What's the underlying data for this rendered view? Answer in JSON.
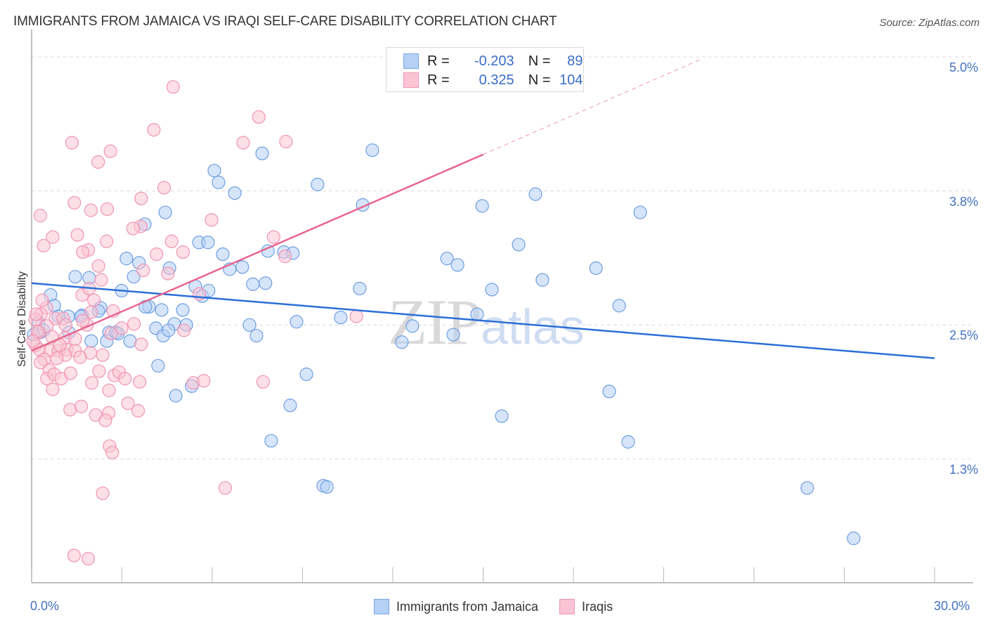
{
  "header": {
    "title": "IMMIGRANTS FROM JAMAICA VS IRAQI SELF-CARE DISABILITY CORRELATION CHART",
    "source": "Source: ZipAtlas.com"
  },
  "legend_box": {
    "rows": [
      {
        "r_label": "R =",
        "r_value": "-0.203",
        "n_label": "N =",
        "n_value": "89",
        "color": "#b4d0f5"
      },
      {
        "r_label": "R =",
        "r_value": "0.325",
        "n_label": "N =",
        "n_value": "104",
        "color": "#fac4d4"
      }
    ]
  },
  "bottom_legend": [
    {
      "label": "Immigrants from Jamaica",
      "color": "#b4d0f5"
    },
    {
      "label": "Iraqis",
      "color": "#fac4d4"
    }
  ],
  "watermark": {
    "part1": "ZIP",
    "part2": "atlas"
  },
  "chart_data": {
    "type": "scatter",
    "title": "IMMIGRANTS FROM JAMAICA VS IRAQI SELF-CARE DISABILITY CORRELATION CHART",
    "xlabel": "",
    "ylabel": "Self-Care Disability",
    "xlim": [
      0,
      30
    ],
    "ylim": [
      0.15,
      5.3
    ],
    "x_tick_labels": [
      {
        "value": 0,
        "label": "0.0%"
      },
      {
        "value": 30,
        "label": "30.0%"
      }
    ],
    "x_minor_ticks": [
      0,
      3,
      6,
      9,
      12,
      15,
      18,
      21,
      24,
      27,
      30
    ],
    "y_ticks": [
      {
        "value": 5.0,
        "label": "5.0%"
      },
      {
        "value": 3.75,
        "label": "3.8%"
      },
      {
        "value": 2.5,
        "label": "2.5%"
      },
      {
        "value": 1.25,
        "label": "1.3%"
      }
    ],
    "grid": "horizontal-dashed",
    "legend": "bottom-center",
    "series": [
      {
        "name": "Immigrants from Jamaica",
        "color": "#6f9ee0",
        "fill": "#b4d0f5",
        "R": -0.203,
        "N": 89,
        "trend": {
          "x": [
            0,
            30
          ],
          "y": [
            2.89,
            2.19
          ],
          "style": "solid"
        },
        "points": [
          [
            0.63,
            2.78
          ],
          [
            0.75,
            2.68
          ],
          [
            0.28,
            2.43
          ],
          [
            0.23,
            2.52
          ],
          [
            1.45,
            2.95
          ],
          [
            1.91,
            2.94
          ],
          [
            1.68,
            2.59
          ],
          [
            1.24,
            2.43
          ],
          [
            2.57,
            2.43
          ],
          [
            1.98,
            2.35
          ],
          [
            2.5,
            2.35
          ],
          [
            2.8,
            2.43
          ],
          [
            2.29,
            2.66
          ],
          [
            2.99,
            2.82
          ],
          [
            3.15,
            3.12
          ],
          [
            3.57,
            3.08
          ],
          [
            3.39,
            2.95
          ],
          [
            3.9,
            2.67
          ],
          [
            4.13,
            2.47
          ],
          [
            4.32,
            2.64
          ],
          [
            4.44,
            3.55
          ],
          [
            4.58,
            3.03
          ],
          [
            3.76,
            3.44
          ],
          [
            4.2,
            2.12
          ],
          [
            4.79,
            1.84
          ],
          [
            4.74,
            2.51
          ],
          [
            5.02,
            2.64
          ],
          [
            5.14,
            2.5
          ],
          [
            5.32,
            1.93
          ],
          [
            5.44,
            2.86
          ],
          [
            5.56,
            3.27
          ],
          [
            5.67,
            2.77
          ],
          [
            5.88,
            2.82
          ],
          [
            5.86,
            3.27
          ],
          [
            6.07,
            3.94
          ],
          [
            6.21,
            3.83
          ],
          [
            6.35,
            3.16
          ],
          [
            6.58,
            3.02
          ],
          [
            6.75,
            3.73
          ],
          [
            7.0,
            3.04
          ],
          [
            7.24,
            2.5
          ],
          [
            7.47,
            2.4
          ],
          [
            7.35,
            2.88
          ],
          [
            7.77,
            2.89
          ],
          [
            7.66,
            4.1
          ],
          [
            7.85,
            3.19
          ],
          [
            8.38,
            3.18
          ],
          [
            8.68,
            3.17
          ],
          [
            8.8,
            2.53
          ],
          [
            9.13,
            2.04
          ],
          [
            9.5,
            3.81
          ],
          [
            9.69,
            1.0
          ],
          [
            9.81,
            0.99
          ],
          [
            10.27,
            2.57
          ],
          [
            10.9,
            2.84
          ],
          [
            11.0,
            3.62
          ],
          [
            11.32,
            4.13
          ],
          [
            12.3,
            2.34
          ],
          [
            12.65,
            2.49
          ],
          [
            13.8,
            3.12
          ],
          [
            14.01,
            2.41
          ],
          [
            14.15,
            3.06
          ],
          [
            14.8,
            2.6
          ],
          [
            14.97,
            3.61
          ],
          [
            15.29,
            2.83
          ],
          [
            15.62,
            1.65
          ],
          [
            16.18,
            3.25
          ],
          [
            16.74,
            3.72
          ],
          [
            16.97,
            2.92
          ],
          [
            18.75,
            3.03
          ],
          [
            19.19,
            1.88
          ],
          [
            19.52,
            2.68
          ],
          [
            19.82,
            1.41
          ],
          [
            20.22,
            3.55
          ],
          [
            25.77,
            0.98
          ],
          [
            27.31,
            0.51
          ],
          [
            7.96,
            1.42
          ],
          [
            8.59,
            1.75
          ],
          [
            1.22,
            2.58
          ],
          [
            2.87,
            2.42
          ],
          [
            3.27,
            2.35
          ],
          [
            3.78,
            2.67
          ],
          [
            4.37,
            2.4
          ],
          [
            1.64,
            2.58
          ],
          [
            4.55,
            2.45
          ],
          [
            0.89,
            2.58
          ],
          [
            0.4,
            2.45
          ],
          [
            0.07,
            2.41
          ],
          [
            2.22,
            2.63
          ]
        ]
      },
      {
        "name": "Iraqis",
        "color": "#f095b3",
        "fill": "#fac4d4",
        "R": 0.325,
        "N": 104,
        "trend": {
          "x": [
            0,
            15.0
          ],
          "y": [
            2.26,
            4.09
          ],
          "style": "solid",
          "extended": {
            "x": [
              15.0,
              22.25
            ],
            "y": [
              4.09,
              4.98
            ],
            "style": "dashed"
          }
        },
        "points": [
          [
            4.7,
            4.72
          ],
          [
            4.06,
            4.32
          ],
          [
            7.55,
            4.44
          ],
          [
            1.34,
            4.2
          ],
          [
            7.03,
            4.2
          ],
          [
            8.45,
            4.21
          ],
          [
            2.62,
            4.12
          ],
          [
            2.21,
            4.02
          ],
          [
            4.4,
            3.78
          ],
          [
            1.42,
            3.64
          ],
          [
            3.64,
            3.68
          ],
          [
            0.29,
            3.52
          ],
          [
            1.97,
            3.57
          ],
          [
            2.51,
            3.58
          ],
          [
            3.62,
            3.42
          ],
          [
            5.98,
            3.48
          ],
          [
            0.7,
            3.32
          ],
          [
            1.52,
            3.34
          ],
          [
            0.4,
            3.24
          ],
          [
            1.88,
            3.2
          ],
          [
            2.49,
            3.28
          ],
          [
            4.15,
            3.16
          ],
          [
            3.37,
            3.4
          ],
          [
            4.65,
            3.28
          ],
          [
            5.03,
            3.18
          ],
          [
            1.7,
            3.18
          ],
          [
            2.22,
            3.05
          ],
          [
            8.04,
            3.32
          ],
          [
            8.42,
            3.14
          ],
          [
            3.71,
            3.01
          ],
          [
            5.57,
            2.79
          ],
          [
            2.31,
            2.92
          ],
          [
            1.68,
            2.78
          ],
          [
            2.07,
            2.73
          ],
          [
            0.49,
            2.66
          ],
          [
            0.79,
            2.56
          ],
          [
            0.31,
            2.6
          ],
          [
            1.05,
            2.56
          ],
          [
            1.98,
            2.62
          ],
          [
            2.71,
            2.63
          ],
          [
            1.13,
            2.5
          ],
          [
            0.24,
            2.43
          ],
          [
            0.51,
            2.49
          ],
          [
            0.68,
            2.39
          ],
          [
            1.84,
            2.5
          ],
          [
            5.06,
            2.45
          ],
          [
            10.79,
            2.58
          ],
          [
            0.13,
            2.31
          ],
          [
            0.26,
            2.27
          ],
          [
            0.61,
            2.26
          ],
          [
            0.89,
            2.26
          ],
          [
            1.17,
            2.27
          ],
          [
            1.45,
            2.26
          ],
          [
            1.12,
            2.22
          ],
          [
            1.95,
            2.24
          ],
          [
            2.36,
            2.22
          ],
          [
            3.64,
            2.32
          ],
          [
            0.42,
            2.18
          ],
          [
            0.84,
            2.19
          ],
          [
            1.61,
            2.2
          ],
          [
            0.59,
            2.08
          ],
          [
            0.51,
            2.0
          ],
          [
            0.75,
            2.04
          ],
          [
            0.98,
            2.0
          ],
          [
            2.75,
            2.03
          ],
          [
            2.91,
            2.06
          ],
          [
            3.1,
            2.0
          ],
          [
            3.59,
            1.97
          ],
          [
            5.37,
            1.96
          ],
          [
            7.69,
            1.97
          ],
          [
            0.7,
            1.9
          ],
          [
            2.0,
            1.96
          ],
          [
            2.24,
            2.07
          ],
          [
            2.57,
            1.89
          ],
          [
            1.28,
            1.71
          ],
          [
            1.65,
            1.74
          ],
          [
            2.13,
            1.66
          ],
          [
            2.56,
            1.68
          ],
          [
            3.2,
            1.77
          ],
          [
            3.54,
            1.7
          ],
          [
            2.45,
            1.61
          ],
          [
            2.59,
            1.37
          ],
          [
            2.68,
            1.31
          ],
          [
            2.36,
            0.93
          ],
          [
            6.43,
            0.98
          ],
          [
            1.41,
            0.35
          ],
          [
            1.88,
            0.32
          ],
          [
            1.11,
            2.38
          ],
          [
            0.3,
            2.15
          ],
          [
            1.45,
            2.37
          ],
          [
            0.12,
            2.55
          ],
          [
            0.35,
            2.73
          ],
          [
            2.99,
            2.47
          ],
          [
            1.7,
            2.54
          ],
          [
            0.2,
            2.44
          ],
          [
            3.4,
            2.51
          ],
          [
            4.53,
            2.98
          ],
          [
            1.91,
            2.84
          ],
          [
            2.64,
            2.42
          ],
          [
            0.94,
            2.31
          ],
          [
            5.72,
            1.98
          ],
          [
            0.15,
            2.6
          ],
          [
            1.29,
            2.05
          ],
          [
            0.05,
            2.35
          ]
        ]
      }
    ]
  }
}
